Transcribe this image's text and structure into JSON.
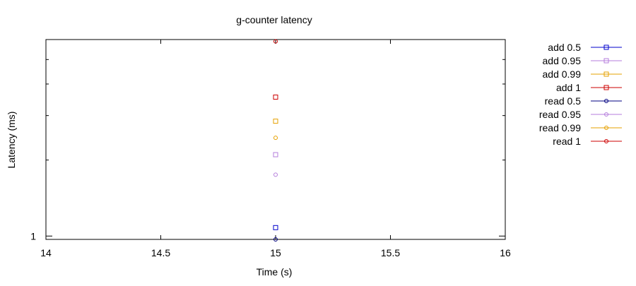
{
  "chart_data": {
    "type": "scatter",
    "title": "g-counter latency",
    "xlabel": "Time (s)",
    "ylabel": "Latency (ms)",
    "xlim": [
      14,
      16
    ],
    "xticks": [
      14,
      14.5,
      15,
      15.5,
      16
    ],
    "xtick_labels": [
      "14",
      "14.5",
      "15",
      "15.5",
      "16"
    ],
    "y_scale": "log",
    "ylim": [
      0.97,
      6.0
    ],
    "ytick_labels": [
      {
        "value": 1,
        "label": "1"
      }
    ],
    "y_minor_ticks": [
      2,
      3,
      4,
      5
    ],
    "grid": false,
    "legend_position": "outside-right",
    "series": [
      {
        "name": "add 0.5",
        "marker": "square",
        "color": "#0000cc",
        "points": [
          {
            "x": 15,
            "y": 1.08
          }
        ]
      },
      {
        "name": "add 0.95",
        "marker": "square",
        "color": "#b57edc",
        "points": [
          {
            "x": 15,
            "y": 2.1
          }
        ]
      },
      {
        "name": "add 0.99",
        "marker": "square",
        "color": "#e6a000",
        "points": [
          {
            "x": 15,
            "y": 2.85
          }
        ]
      },
      {
        "name": "add 1",
        "marker": "square",
        "color": "#cc0000",
        "points": [
          {
            "x": 15,
            "y": 3.55
          }
        ]
      },
      {
        "name": "read 0.5",
        "marker": "circle",
        "color": "#000080",
        "points": [
          {
            "x": 15,
            "y": 0.97
          }
        ]
      },
      {
        "name": "read 0.95",
        "marker": "circle",
        "color": "#b57edc",
        "points": [
          {
            "x": 15,
            "y": 1.75
          }
        ]
      },
      {
        "name": "read 0.99",
        "marker": "circle",
        "color": "#e6a000",
        "points": [
          {
            "x": 15,
            "y": 2.45
          }
        ]
      },
      {
        "name": "read 1",
        "marker": "circle",
        "color": "#cc0000",
        "points": [
          {
            "x": 15,
            "y": 5.9
          }
        ]
      }
    ]
  }
}
